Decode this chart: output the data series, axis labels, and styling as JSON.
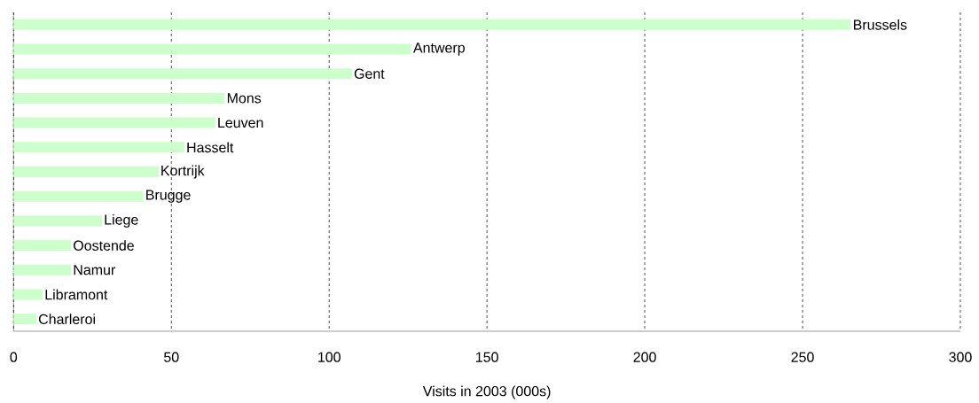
{
  "chart_data": {
    "type": "bar",
    "orientation": "horizontal",
    "xlabel": "Visits in 2003 (000s)",
    "categories": [
      "Brussels",
      "Antwerp",
      "Gent",
      "Mons",
      "Leuven",
      "Hasselt",
      "Kortrijk",
      "Brugge",
      "Liege",
      "Oostende",
      "Namur",
      "Libramont",
      "Charleroi"
    ],
    "values": [
      265.3,
      126,
      107.2,
      66.9,
      63.9,
      54.1,
      45.9,
      41.1,
      28,
      18.2,
      18.2,
      9.2,
      7.2
    ],
    "color": "#ccffcc",
    "xlim": [
      0,
      300
    ],
    "xticks": [
      0,
      50,
      100,
      150,
      200,
      250,
      300
    ],
    "grid": "x"
  }
}
